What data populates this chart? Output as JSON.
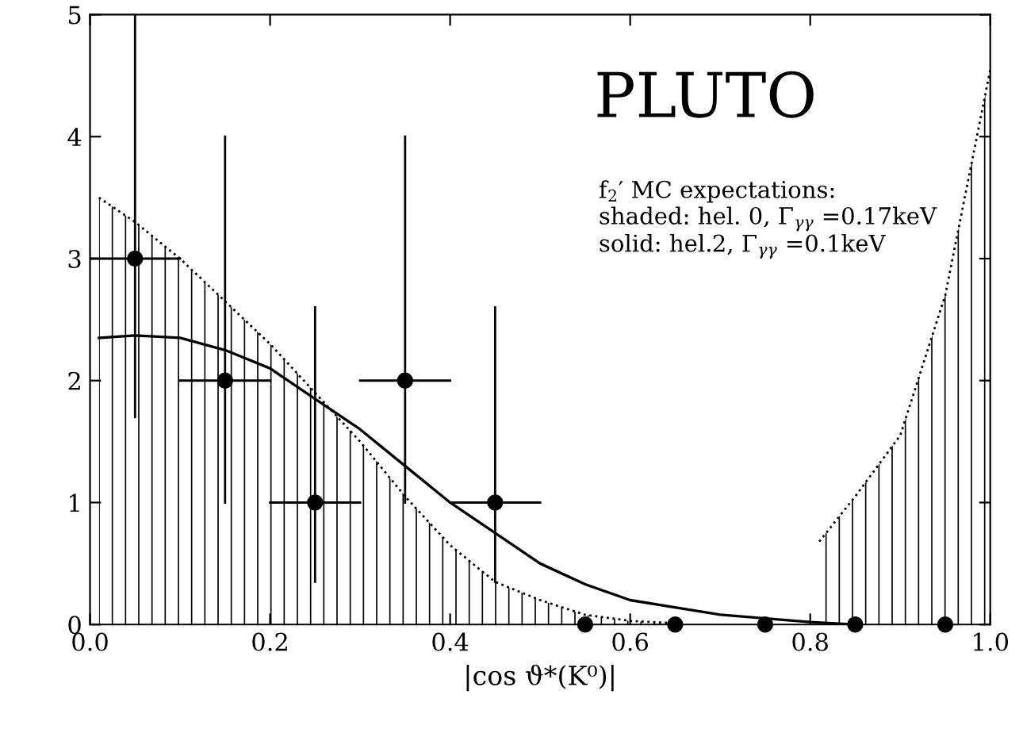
{
  "chart_data": {
    "type": "scatter",
    "xlabel": "|cos ϑ*(K⁰)|",
    "annotations": [
      "PLUTO",
      "f$_{2}$′ MC expectations:",
      "shaded: hel. 0, Γ$_{γγ}$ =0.17keV",
      "solid: hel.2, Γ$_{γγ}$ =0.1keV"
    ],
    "xlim": [
      0,
      1
    ],
    "ylim": [
      0,
      5
    ],
    "xticks": [
      {
        "value": 0,
        "label": "0.0"
      },
      0.2,
      0.4,
      0.6,
      0.8,
      {
        "value": 1,
        "label": "1.0"
      }
    ],
    "yticks": [
      0,
      1,
      2,
      3,
      4,
      5
    ],
    "grid": false,
    "legend": false,
    "series": [
      {
        "type": "area",
        "color": "#000000",
        "line_style": "dotted",
        "x": [
          0.01,
          0.05,
          0.1,
          0.15,
          0.2,
          0.25,
          0.3,
          0.35,
          0.4,
          0.45,
          0.5,
          0.55,
          0.6,
          0.65
        ],
        "values": [
          3.5,
          3.3,
          3.0,
          2.65,
          2.3,
          1.9,
          1.5,
          1.05,
          0.65,
          0.35,
          0.2,
          0.08,
          0.03,
          0.01
        ]
      },
      {
        "type": "area",
        "color": "#000000",
        "line_style": "dotted",
        "x": [
          0.81,
          0.85,
          0.9,
          0.95,
          1.0
        ],
        "values": [
          0.68,
          1.05,
          1.55,
          2.7,
          4.55
        ]
      },
      {
        "type": "line",
        "color": "#000000",
        "line_style": "solid",
        "x": [
          0.01,
          0.05,
          0.1,
          0.15,
          0.2,
          0.25,
          0.3,
          0.35,
          0.4,
          0.45,
          0.5,
          0.55,
          0.6,
          0.7,
          0.8,
          0.85
        ],
        "values": [
          2.35,
          2.37,
          2.35,
          2.25,
          2.1,
          1.85,
          1.6,
          1.3,
          1.0,
          0.75,
          0.5,
          0.33,
          0.2,
          0.08,
          0.02,
          0
        ]
      },
      {
        "color": "#000000",
        "marker": "circle",
        "x": [
          0.05,
          0.15,
          0.25,
          0.35,
          0.45,
          0.55,
          0.65,
          0.75,
          0.85,
          0.95
        ],
        "values": [
          3,
          2,
          1,
          2,
          1,
          0,
          0,
          0,
          0,
          0
        ],
        "errors": [
          [
            1.7,
            5
          ],
          [
            1.0,
            4.0
          ],
          [
            0.35,
            2.6
          ],
          [
            1.0,
            4.0
          ],
          [
            0.35,
            2.6
          ],
          null,
          null,
          null,
          null,
          null
        ],
        "xerrors": [
          0.05,
          0.05,
          0.05,
          0.05,
          0.05,
          null,
          null,
          null,
          null,
          null
        ]
      }
    ]
  }
}
